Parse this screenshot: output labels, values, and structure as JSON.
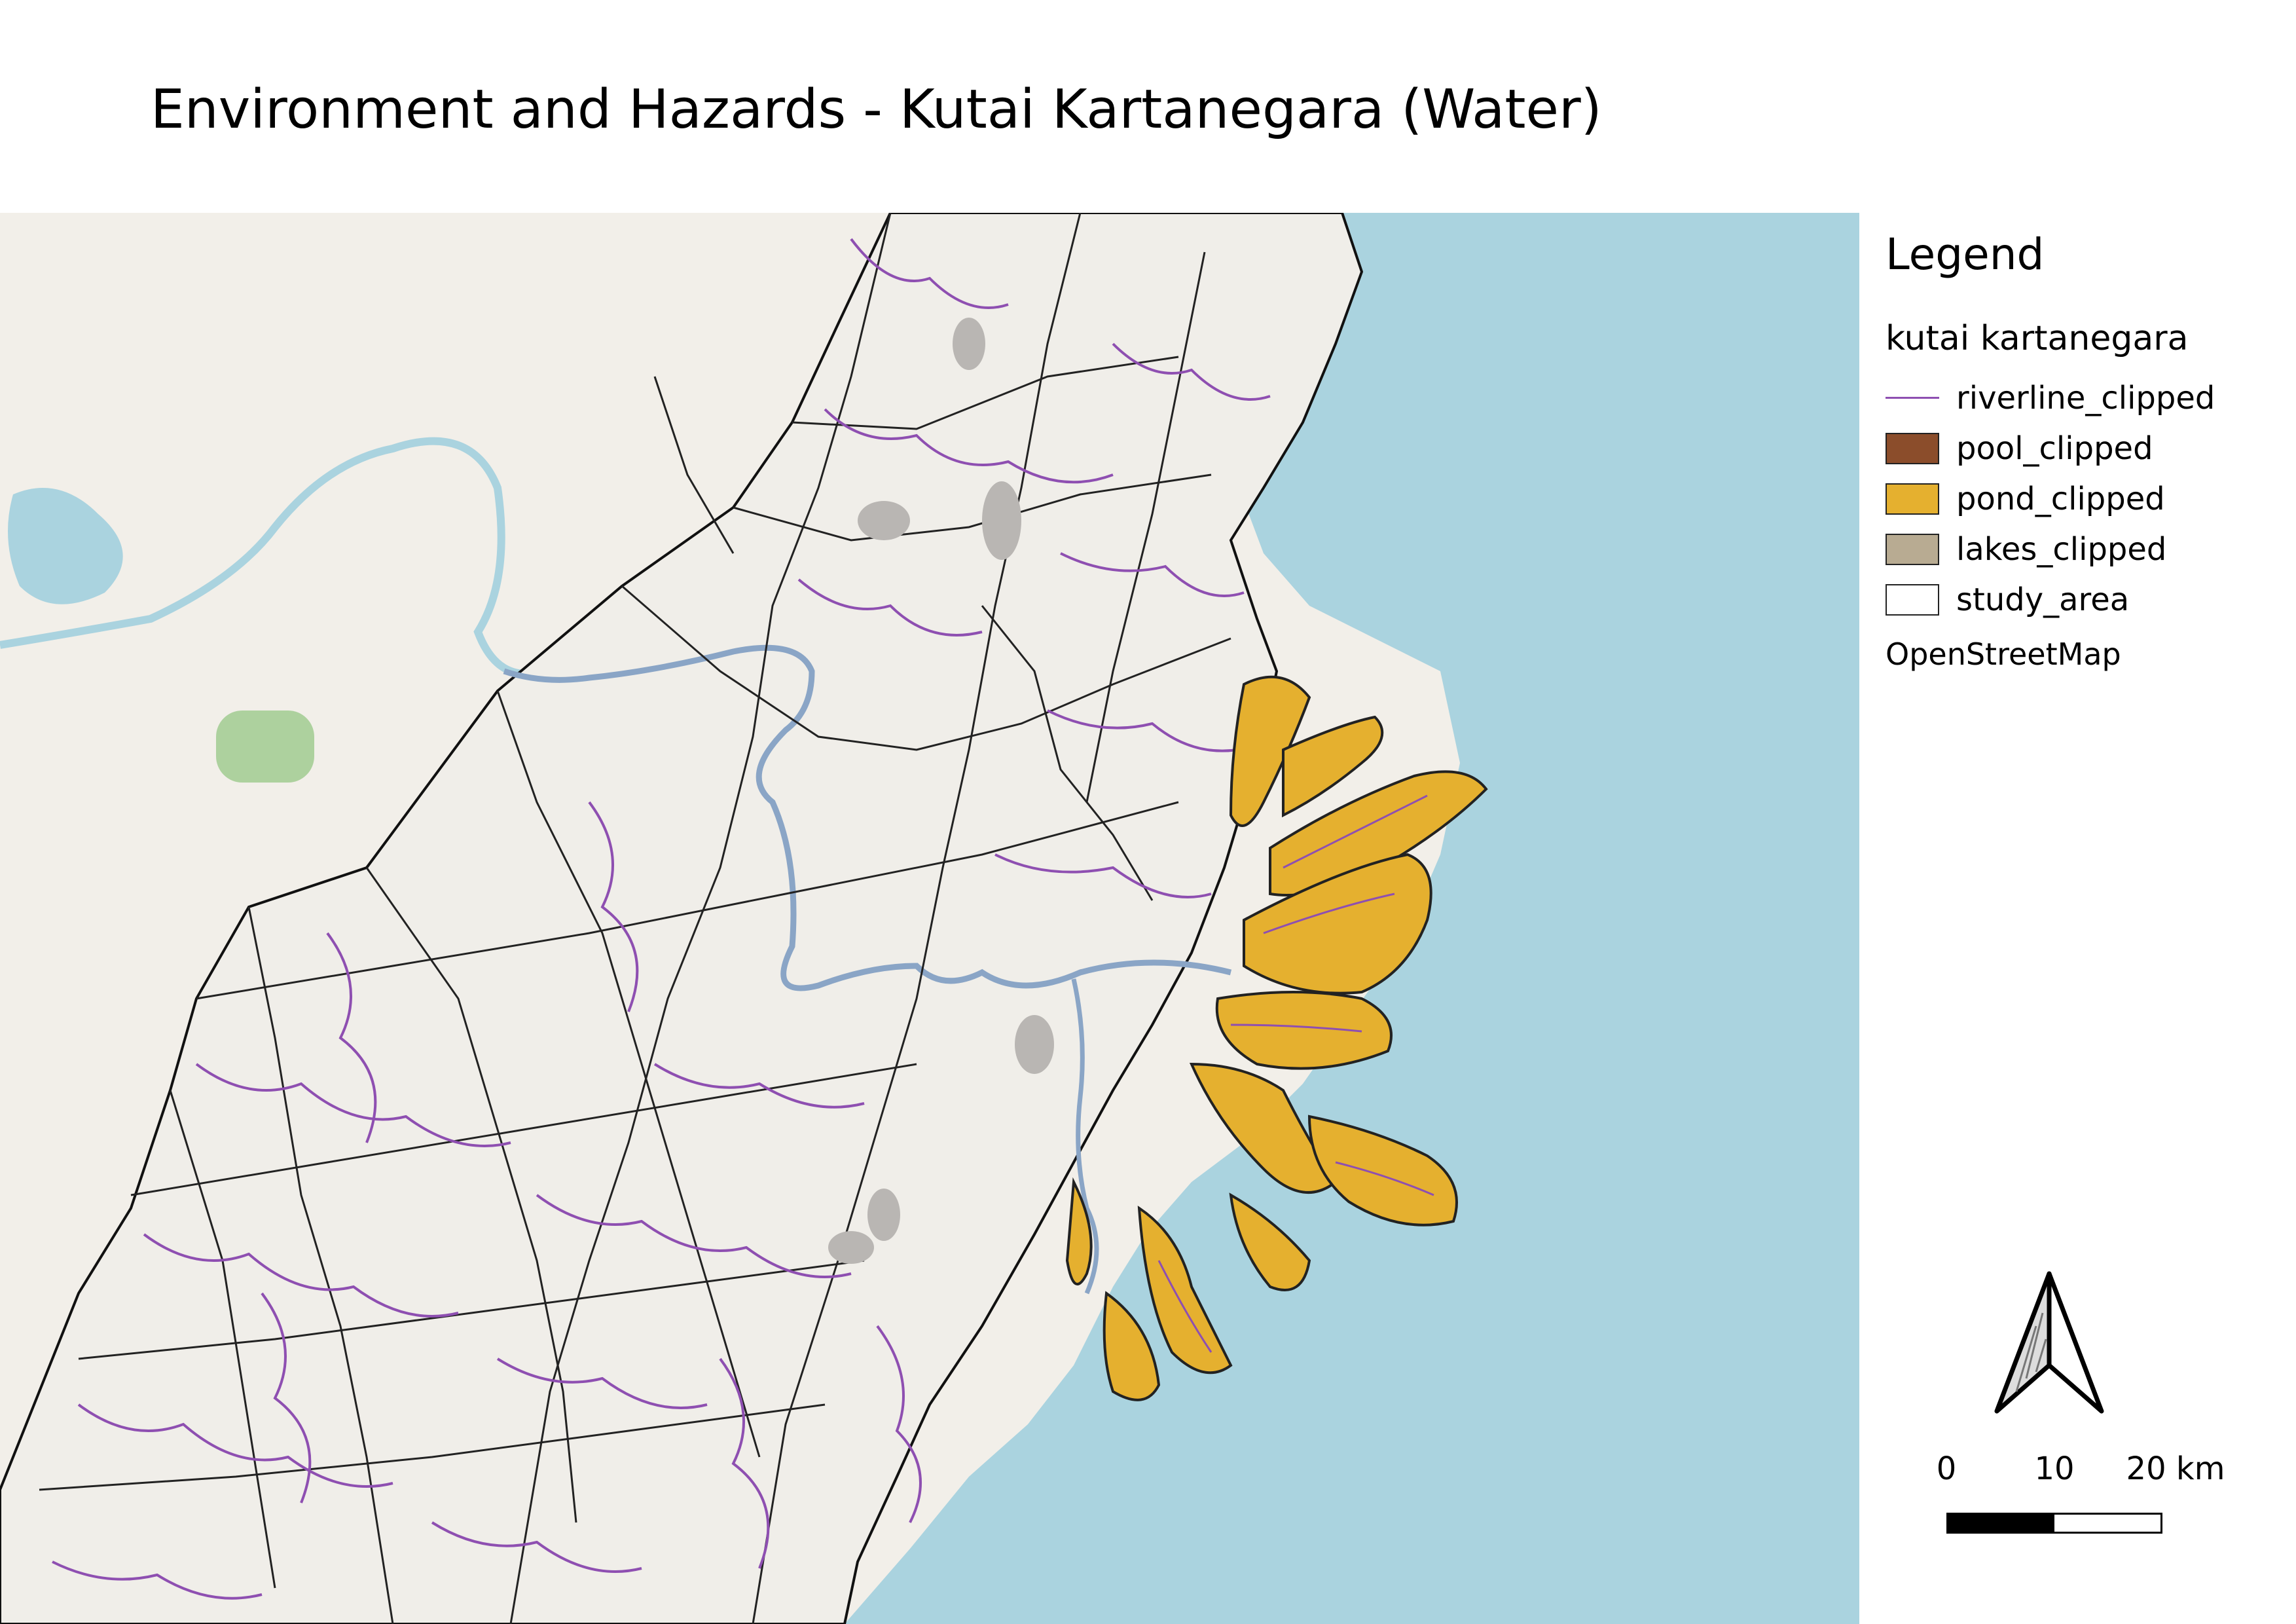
{
  "title": "Environment and Hazards - Kutai Kartanegara (Water)",
  "legend": {
    "title": "Legend",
    "group": "kutai kartanegara",
    "items": [
      {
        "label": "riverline_clipped",
        "type": "line",
        "color": "#8e4fb1"
      },
      {
        "label": "pool_clipped",
        "type": "fill",
        "color": "#8b4d2b"
      },
      {
        "label": "pond_clipped",
        "type": "fill",
        "color": "#e5b02f"
      },
      {
        "label": "lakes_clipped",
        "type": "fill",
        "color": "#b8ab92"
      },
      {
        "label": "study_area",
        "type": "fill",
        "color": "#ffffff"
      }
    ],
    "basemap": "OpenStreetMap"
  },
  "scale": {
    "labels": [
      "0",
      "10",
      "20 km"
    ]
  },
  "colors": {
    "sea": "#aad3df",
    "land": "#f2efe9",
    "study_area_fill": "#f0eee9",
    "river_major": "#8aa5c6",
    "riverline": "#8e4fb1",
    "boundary": "#111111",
    "pond": "#e5b02f",
    "urban": "#b9b6b3"
  },
  "icons": {
    "north_arrow": "north-arrow-icon"
  }
}
